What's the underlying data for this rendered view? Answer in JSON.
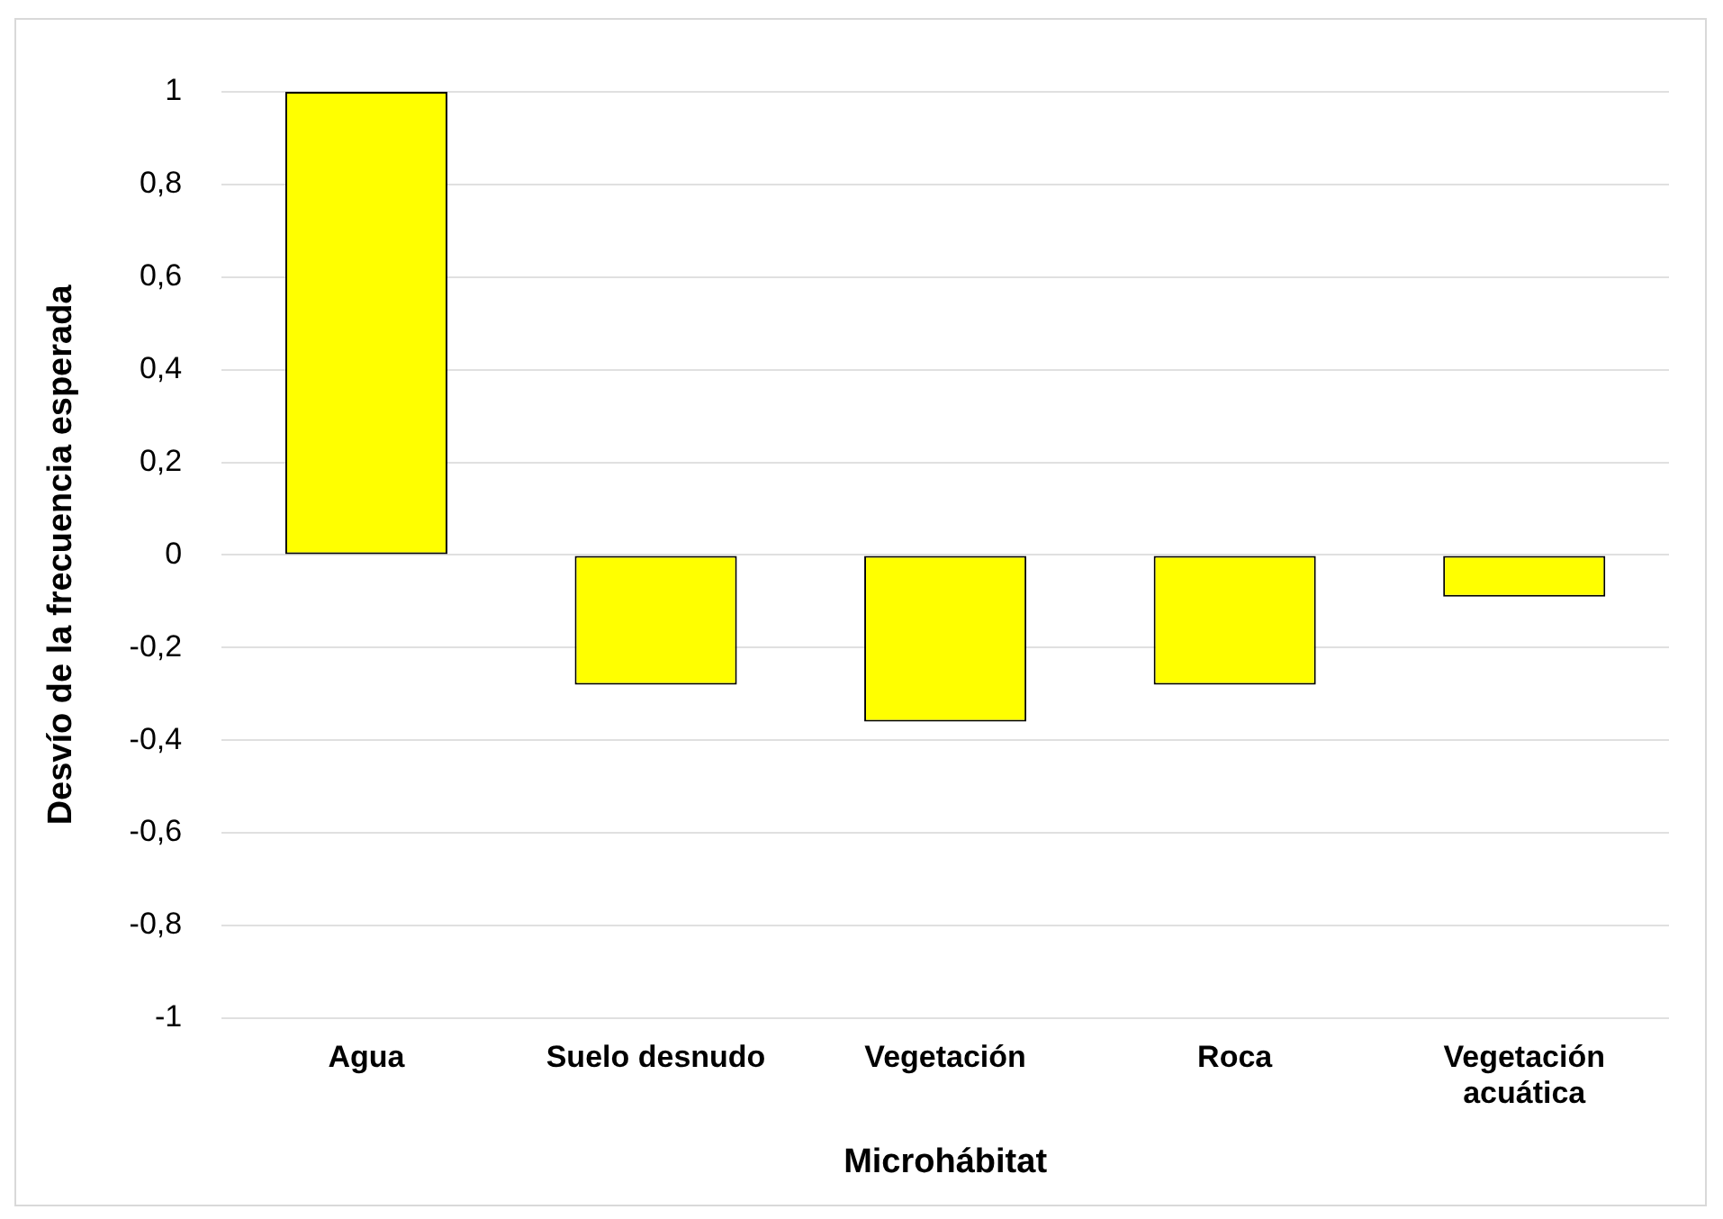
{
  "chart_data": {
    "type": "bar",
    "xlabel": "Microhábitat",
    "ylabel": "Desvío de la frecuencia esperada",
    "categories": [
      "Agua",
      "Suelo desnudo",
      "Vegetación",
      "Roca",
      "Vegetación acuática"
    ],
    "values": [
      1,
      -0.28,
      -0.36,
      -0.28,
      -0.09
    ],
    "color": "#ffff00",
    "ylim": [
      -1,
      1
    ],
    "yticks": [
      {
        "value": -1,
        "label": "-1"
      },
      {
        "value": -0.8,
        "label": "-0,8"
      },
      {
        "value": -0.6,
        "label": "-0,6"
      },
      {
        "value": -0.4,
        "label": "-0,4"
      },
      {
        "value": -0.2,
        "label": "-0,2"
      },
      {
        "value": 0,
        "label": "0"
      },
      {
        "value": 0.2,
        "label": "0,2"
      },
      {
        "value": 0.4,
        "label": "0,4"
      },
      {
        "value": 0.6,
        "label": "0,6"
      },
      {
        "value": 0.8,
        "label": "0,8"
      },
      {
        "value": 1,
        "label": "1"
      }
    ],
    "grid": "y"
  }
}
